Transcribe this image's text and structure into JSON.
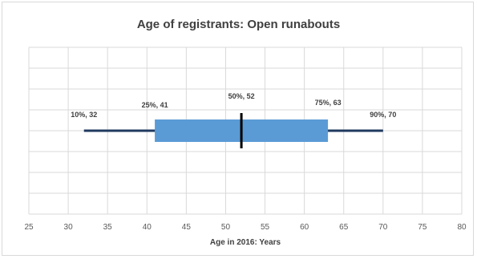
{
  "chart_data": {
    "type": "box",
    "title": "Age of registrants: Open runabouts",
    "xlabel": "Age in 2016: Years",
    "xlim": [
      25,
      80
    ],
    "xticks": [
      25,
      30,
      35,
      40,
      45,
      50,
      55,
      60,
      65,
      70,
      75,
      80
    ],
    "grid": true,
    "percentiles": [
      {
        "p": "10%",
        "value": 32,
        "label": "10%, 32"
      },
      {
        "p": "25%",
        "value": 41,
        "label": "25%, 41"
      },
      {
        "p": "50%",
        "value": 52,
        "label": "50%, 52"
      },
      {
        "p": "75%",
        "value": 63,
        "label": "75%, 63"
      },
      {
        "p": "90%",
        "value": 70,
        "label": "90%, 70"
      }
    ],
    "colors": {
      "box": "#5b9bd5",
      "whisker": "#1f3a5f",
      "median": "#000000",
      "grid": "#d9d9d9"
    }
  }
}
